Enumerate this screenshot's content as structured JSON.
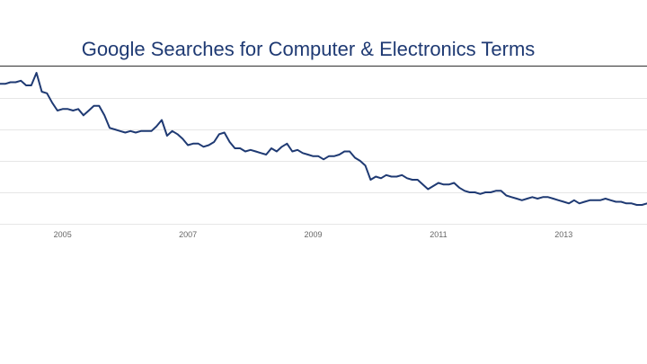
{
  "chart_data": {
    "type": "line",
    "title": "Google Searches for Computer & Electronics Terms",
    "xlabel": "",
    "ylabel": "",
    "x_tick_labels": [
      "2005",
      "2007",
      "2009",
      "2011",
      "2013"
    ],
    "x_tick_values": [
      2005,
      2007,
      2009,
      2011,
      2013
    ],
    "xlim": [
      2004.0,
      2014.33
    ],
    "ylim": [
      0,
      100
    ],
    "y_axis_labels_shown": false,
    "grid": true,
    "grid_y": [
      0,
      20,
      40,
      60,
      80,
      100
    ],
    "line_color": "#1f3a73",
    "series": [
      {
        "x": [
          2004.0,
          2004.083,
          2004.167,
          2004.25,
          2004.333,
          2004.417,
          2004.5,
          2004.583,
          2004.667,
          2004.75,
          2004.833,
          2004.917,
          2005.0,
          2005.083,
          2005.167,
          2005.25,
          2005.333,
          2005.417,
          2005.5,
          2005.583,
          2005.667,
          2005.75,
          2005.833,
          2005.917,
          2006.0,
          2006.083,
          2006.167,
          2006.25,
          2006.333,
          2006.417,
          2006.5,
          2006.583,
          2006.667,
          2006.75,
          2006.833,
          2006.917,
          2007.0,
          2007.083,
          2007.167,
          2007.25,
          2007.333,
          2007.417,
          2007.5,
          2007.583,
          2007.667,
          2007.75,
          2007.833,
          2007.917,
          2008.0,
          2008.083,
          2008.167,
          2008.25,
          2008.333,
          2008.417,
          2008.5,
          2008.583,
          2008.667,
          2008.75,
          2008.833,
          2008.917,
          2009.0,
          2009.083,
          2009.167,
          2009.25,
          2009.333,
          2009.417,
          2009.5,
          2009.583,
          2009.667,
          2009.75,
          2009.833,
          2009.917,
          2010.0,
          2010.083,
          2010.167,
          2010.25,
          2010.333,
          2010.417,
          2010.5,
          2010.583,
          2010.667,
          2010.75,
          2010.833,
          2010.917,
          2011.0,
          2011.083,
          2011.167,
          2011.25,
          2011.333,
          2011.417,
          2011.5,
          2011.583,
          2011.667,
          2011.75,
          2011.833,
          2011.917,
          2012.0,
          2012.083,
          2012.167,
          2012.25,
          2012.333,
          2012.417,
          2012.5,
          2012.583,
          2012.667,
          2012.75,
          2012.833,
          2012.917,
          2013.0,
          2013.083,
          2013.167,
          2013.25,
          2013.333,
          2013.417,
          2013.5,
          2013.583,
          2013.667,
          2013.75,
          2013.833,
          2013.917,
          2014.0,
          2014.083,
          2014.167,
          2014.25,
          2014.333
        ],
        "y": [
          89,
          89,
          90,
          90,
          91,
          88,
          88,
          96,
          84,
          83,
          77,
          72,
          73,
          73,
          72,
          73,
          69,
          72,
          75,
          75,
          69,
          61,
          60,
          59,
          58,
          59,
          58,
          59,
          59,
          59,
          62,
          66,
          56,
          59,
          57,
          54,
          50,
          51,
          51,
          49,
          50,
          52,
          57,
          58,
          52,
          48,
          48,
          46,
          47,
          46,
          45,
          44,
          48,
          46,
          49,
          51,
          46,
          47,
          45,
          44,
          43,
          43,
          41,
          43,
          43,
          44,
          46,
          46,
          42,
          40,
          37,
          28,
          30,
          29,
          31,
          30,
          30,
          31,
          29,
          28,
          28,
          25,
          22,
          24,
          26,
          25,
          25,
          26,
          23,
          21,
          20,
          20,
          19,
          20,
          20,
          21,
          21,
          18,
          17,
          16,
          15,
          16,
          17,
          16,
          17,
          17,
          16,
          15,
          14,
          13,
          15,
          13,
          14,
          15,
          15,
          15,
          16,
          15,
          14,
          14,
          13,
          13,
          12,
          12,
          13
        ]
      }
    ]
  }
}
